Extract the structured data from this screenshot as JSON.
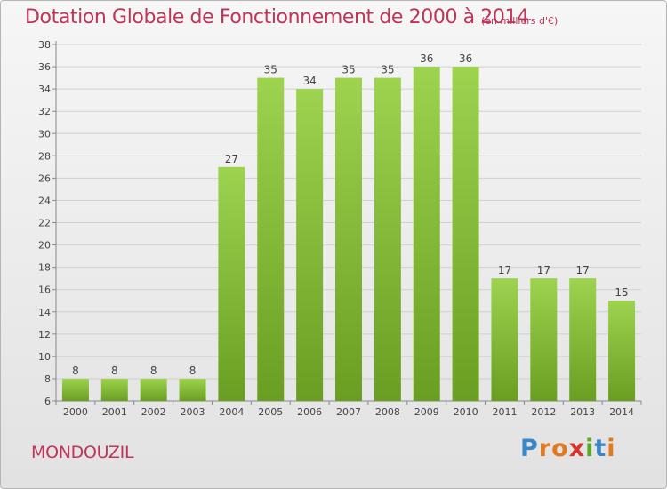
{
  "title": "Dotation Globale de Fonctionnement de 2000 à 2014",
  "subtitle": "(en milliers d'€)",
  "commune": "MONDOUZIL",
  "brand": {
    "text": "Proxiti",
    "letters": [
      {
        "ch": "P",
        "color": "#3a87c8"
      },
      {
        "ch": "r",
        "color": "#e07a20"
      },
      {
        "ch": "o",
        "color": "#e07a20"
      },
      {
        "ch": "x",
        "color": "#d8342e"
      },
      {
        "ch": "i",
        "color": "#5aa828"
      },
      {
        "ch": "t",
        "color": "#3a87c8"
      },
      {
        "ch": "i",
        "color": "#e07a20"
      }
    ]
  },
  "colors": {
    "bar_top": "#9dd34f",
    "bar_bottom": "#6a9e22",
    "title": "#c0345a",
    "grid": "#d0d0d0",
    "axis": "#888888"
  },
  "chart_data": {
    "type": "bar",
    "title": "Dotation Globale de Fonctionnement de 2000 à 2014",
    "subtitle": "(en milliers d'€)",
    "xlabel": "",
    "ylabel": "",
    "categories": [
      "2000",
      "2001",
      "2002",
      "2003",
      "2004",
      "2005",
      "2006",
      "2007",
      "2008",
      "2009",
      "2010",
      "2011",
      "2012",
      "2013",
      "2014"
    ],
    "values": [
      8,
      8,
      8,
      8,
      27,
      35,
      34,
      35,
      35,
      36,
      36,
      17,
      17,
      17,
      15
    ],
    "ylim": [
      6,
      38
    ],
    "yticks": [
      6,
      8,
      10,
      12,
      14,
      16,
      18,
      20,
      22,
      24,
      26,
      28,
      30,
      32,
      34,
      36,
      38
    ],
    "grid": true,
    "data_labels": true
  }
}
